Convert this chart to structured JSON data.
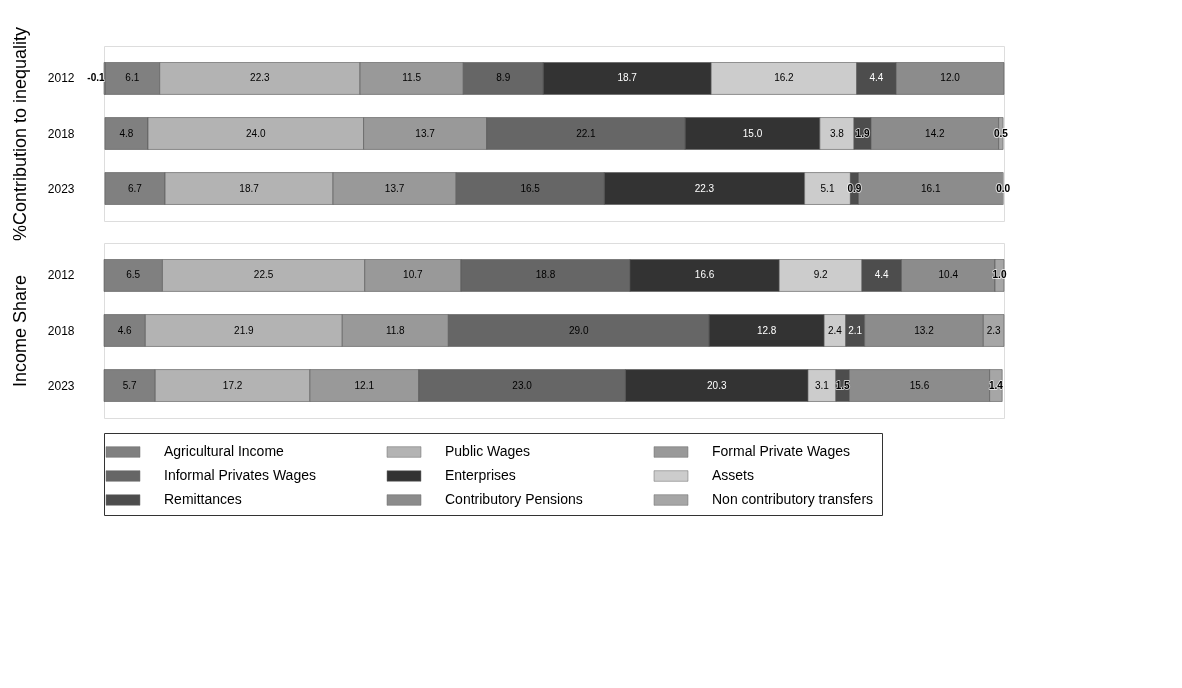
{
  "chart_data": [
    {
      "type": "bar",
      "orientation": "horizontal",
      "stacked": true,
      "tick_labels": "y",
      "legend": "bottom",
      "ylabel": "%Contribution to inequality",
      "categories": [
        "2012",
        "2018",
        "2023"
      ],
      "series": [
        {
          "name": "Agricultural Income",
          "color": "#808080",
          "values": [
            6.1,
            4.8,
            6.7
          ],
          "value_labels": [
            "6.1",
            "4.8",
            "6.7"
          ]
        },
        {
          "name": "Public Wages",
          "color": "#b3b3b3",
          "values": [
            22.3,
            24.0,
            18.7
          ],
          "value_labels": [
            "22.3",
            "24.0",
            "18.7"
          ]
        },
        {
          "name": "Formal Private Wages",
          "color": "#999999",
          "values": [
            11.5,
            13.7,
            13.7
          ],
          "value_labels": [
            "11.5",
            "13.7",
            "13.7"
          ]
        },
        {
          "name": "Informal Privates Wages",
          "color": "#666666",
          "values": [
            8.9,
            22.1,
            16.5
          ],
          "value_labels": [
            "8.9",
            "22.1",
            "16.5"
          ]
        },
        {
          "name": "Enterprises",
          "color": "#333333",
          "values": [
            18.7,
            15.0,
            22.3
          ],
          "value_labels": [
            "18.7",
            "15.0",
            "22.3"
          ]
        },
        {
          "name": "Assets",
          "color": "#cccccc",
          "values": [
            16.2,
            3.8,
            5.1
          ],
          "value_labels": [
            "16.2",
            "3.8",
            "5.1"
          ]
        },
        {
          "name": "Remittances",
          "color": "#4d4d4d",
          "values": [
            4.4,
            1.9,
            0.9
          ],
          "value_labels": [
            "4.4",
            "1.9",
            "0.9"
          ]
        },
        {
          "name": "Contributory Pensions",
          "color": "#8c8c8c",
          "values": [
            12.0,
            14.2,
            16.1
          ],
          "value_labels": [
            "12.0",
            "14.2",
            "16.1"
          ]
        },
        {
          "name": " Non contributory transfers",
          "color": "#a6a6a6",
          "values": [
            -0.1,
            0.5,
            0.0
          ],
          "value_labels": [
            "-0.1",
            "0.5",
            "0.0"
          ]
        }
      ]
    },
    {
      "type": "bar",
      "orientation": "horizontal",
      "stacked": true,
      "tick_labels": "y",
      "legend": "bottom",
      "ylabel": "Income Share",
      "categories": [
        "2012",
        "2018",
        "2023"
      ],
      "series": [
        {
          "name": "Agricultural Income",
          "color": "#808080",
          "values": [
            6.5,
            4.6,
            5.7
          ],
          "value_labels": [
            "6.5",
            "4.6",
            "5.7"
          ]
        },
        {
          "name": "Public Wages",
          "color": "#b3b3b3",
          "values": [
            22.5,
            21.9,
            17.2
          ],
          "value_labels": [
            "22.5",
            "21.9",
            "17.2"
          ]
        },
        {
          "name": "Formal Private Wages",
          "color": "#999999",
          "values": [
            10.7,
            11.8,
            12.1
          ],
          "value_labels": [
            "10.7",
            "11.8",
            "12.1"
          ]
        },
        {
          "name": "Informal Privates Wages",
          "color": "#666666",
          "values": [
            18.8,
            29.0,
            23.0
          ],
          "value_labels": [
            "18.8",
            "29.0",
            "23.0"
          ]
        },
        {
          "name": "Enterprises",
          "color": "#333333",
          "values": [
            16.6,
            12.8,
            20.3
          ],
          "value_labels": [
            "16.6",
            "12.8",
            "20.3"
          ]
        },
        {
          "name": "Assets",
          "color": "#cccccc",
          "values": [
            9.2,
            2.4,
            3.1
          ],
          "value_labels": [
            "9.2",
            "2.4",
            "3.1"
          ]
        },
        {
          "name": "Remittances",
          "color": "#4d4d4d",
          "values": [
            4.4,
            2.1,
            1.5
          ],
          "value_labels": [
            "4.4",
            "2.1",
            "1.5"
          ]
        },
        {
          "name": "Contributory Pensions",
          "color": "#8c8c8c",
          "values": [
            10.4,
            13.2,
            15.6
          ],
          "value_labels": [
            "10.4",
            "13.2",
            "15.6"
          ]
        },
        {
          "name": " Non contributory transfers",
          "color": "#a6a6a6",
          "values": [
            1.0,
            2.3,
            1.4
          ],
          "value_labels": [
            "1.0",
            "2.3",
            "1.4"
          ]
        }
      ]
    }
  ]
}
